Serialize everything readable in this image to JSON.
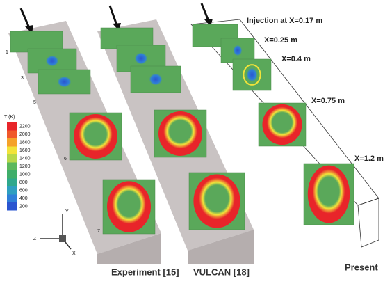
{
  "locations": [
    "Injection at X=0.17 m",
    "X=0.25 m",
    "X=0.4 m",
    "X=0.75 m",
    "X=1.2 m"
  ],
  "panels": [
    "Experiment [15]",
    "VULCAN [18]",
    "Present"
  ],
  "planes": [
    "1",
    "3",
    "5",
    "6",
    "7"
  ],
  "colorbar": {
    "title": "T (K)",
    "ticks": [
      2200,
      2000,
      1800,
      1600,
      1400,
      1200,
      1000,
      800,
      600,
      400,
      200
    ],
    "colors": [
      "#e8252a",
      "#f0582a",
      "#f5a22a",
      "#f2e33a",
      "#b8d84a",
      "#5cb85c",
      "#3fae6a",
      "#2fa88c",
      "#2f9fc0",
      "#2f7fd8",
      "#2a55d0"
    ]
  },
  "axes": {
    "y": "Y",
    "z": "Z",
    "x": "X"
  }
}
